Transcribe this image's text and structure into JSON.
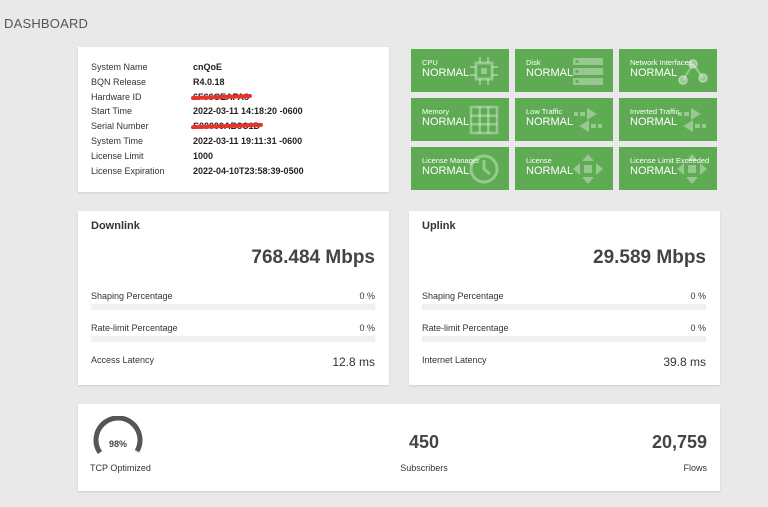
{
  "page": {
    "title": "DASHBOARD"
  },
  "system_info": [
    {
      "key": "System Name",
      "value": "cnQoE",
      "redacted": false
    },
    {
      "key": "BQN Release",
      "value": "R4.0.18",
      "redacted": false
    },
    {
      "key": "Hardware ID",
      "value": "6F66CEAFA8",
      "redacted": true
    },
    {
      "key": "Start Time",
      "value": "2022-03-11 14:18:20 -0600",
      "redacted": false
    },
    {
      "key": "Serial Number",
      "value": "S00000AB8C1D",
      "redacted": true
    },
    {
      "key": "System Time",
      "value": "2022-03-11 19:11:31 -0600",
      "redacted": false
    },
    {
      "key": "License Limit",
      "value": "1000",
      "redacted": false
    },
    {
      "key": "License Expiration",
      "value": "2022-04-10T23:58:39-0500",
      "redacted": false
    }
  ],
  "tiles": [
    {
      "label": "CPU",
      "status": "NORMAL",
      "icon": "cpu-chip-icon"
    },
    {
      "label": "Disk",
      "status": "NORMAL",
      "icon": "disk-stack-icon"
    },
    {
      "label": "Network Interfaces",
      "status": "NORMAL",
      "icon": "network-icon"
    },
    {
      "label": "Memory",
      "status": "NORMAL",
      "icon": "memory-grid-icon"
    },
    {
      "label": "Low Traffic",
      "status": "NORMAL",
      "icon": "traffic-arrows-icon"
    },
    {
      "label": "Inverted Traffic",
      "status": "NORMAL",
      "icon": "traffic-arrows-icon"
    },
    {
      "label": "License Manager",
      "status": "NORMAL",
      "icon": "clock-icon"
    },
    {
      "label": "License",
      "status": "NORMAL",
      "icon": "license-arrows-icon"
    },
    {
      "label": "License Limit Exceeded",
      "status": "NORMAL",
      "icon": "license-arrows-icon"
    }
  ],
  "colors": {
    "tile_green": "#5fab54",
    "redaction": "#e8332a",
    "gauge_dark": "#555555",
    "gauge_light": "#e6e6e6"
  },
  "downlink": {
    "title": "Downlink",
    "throughput": "768.484 Mbps",
    "shaping_label": "Shaping Percentage",
    "shaping_value": "0 %",
    "shaping_fraction": 0,
    "ratelimit_label": "Rate-limit Percentage",
    "ratelimit_value": "0 %",
    "ratelimit_fraction": 0,
    "latency_label": "Access Latency",
    "latency_value": "12.8 ms"
  },
  "uplink": {
    "title": "Uplink",
    "throughput": "29.589 Mbps",
    "shaping_label": "Shaping Percentage",
    "shaping_value": "0 %",
    "shaping_fraction": 0,
    "ratelimit_label": "Rate-limit Percentage",
    "ratelimit_value": "0 %",
    "ratelimit_fraction": 0,
    "latency_label": "Internet Latency",
    "latency_value": "39.8 ms"
  },
  "summary": {
    "tcp_optimized_value": "98%",
    "tcp_optimized_fraction": 0.98,
    "tcp_optimized_label": "TCP Optimized",
    "subscribers_value": "450",
    "subscribers_label": "Subscribers",
    "flows_value": "20,759",
    "flows_label": "Flows"
  }
}
